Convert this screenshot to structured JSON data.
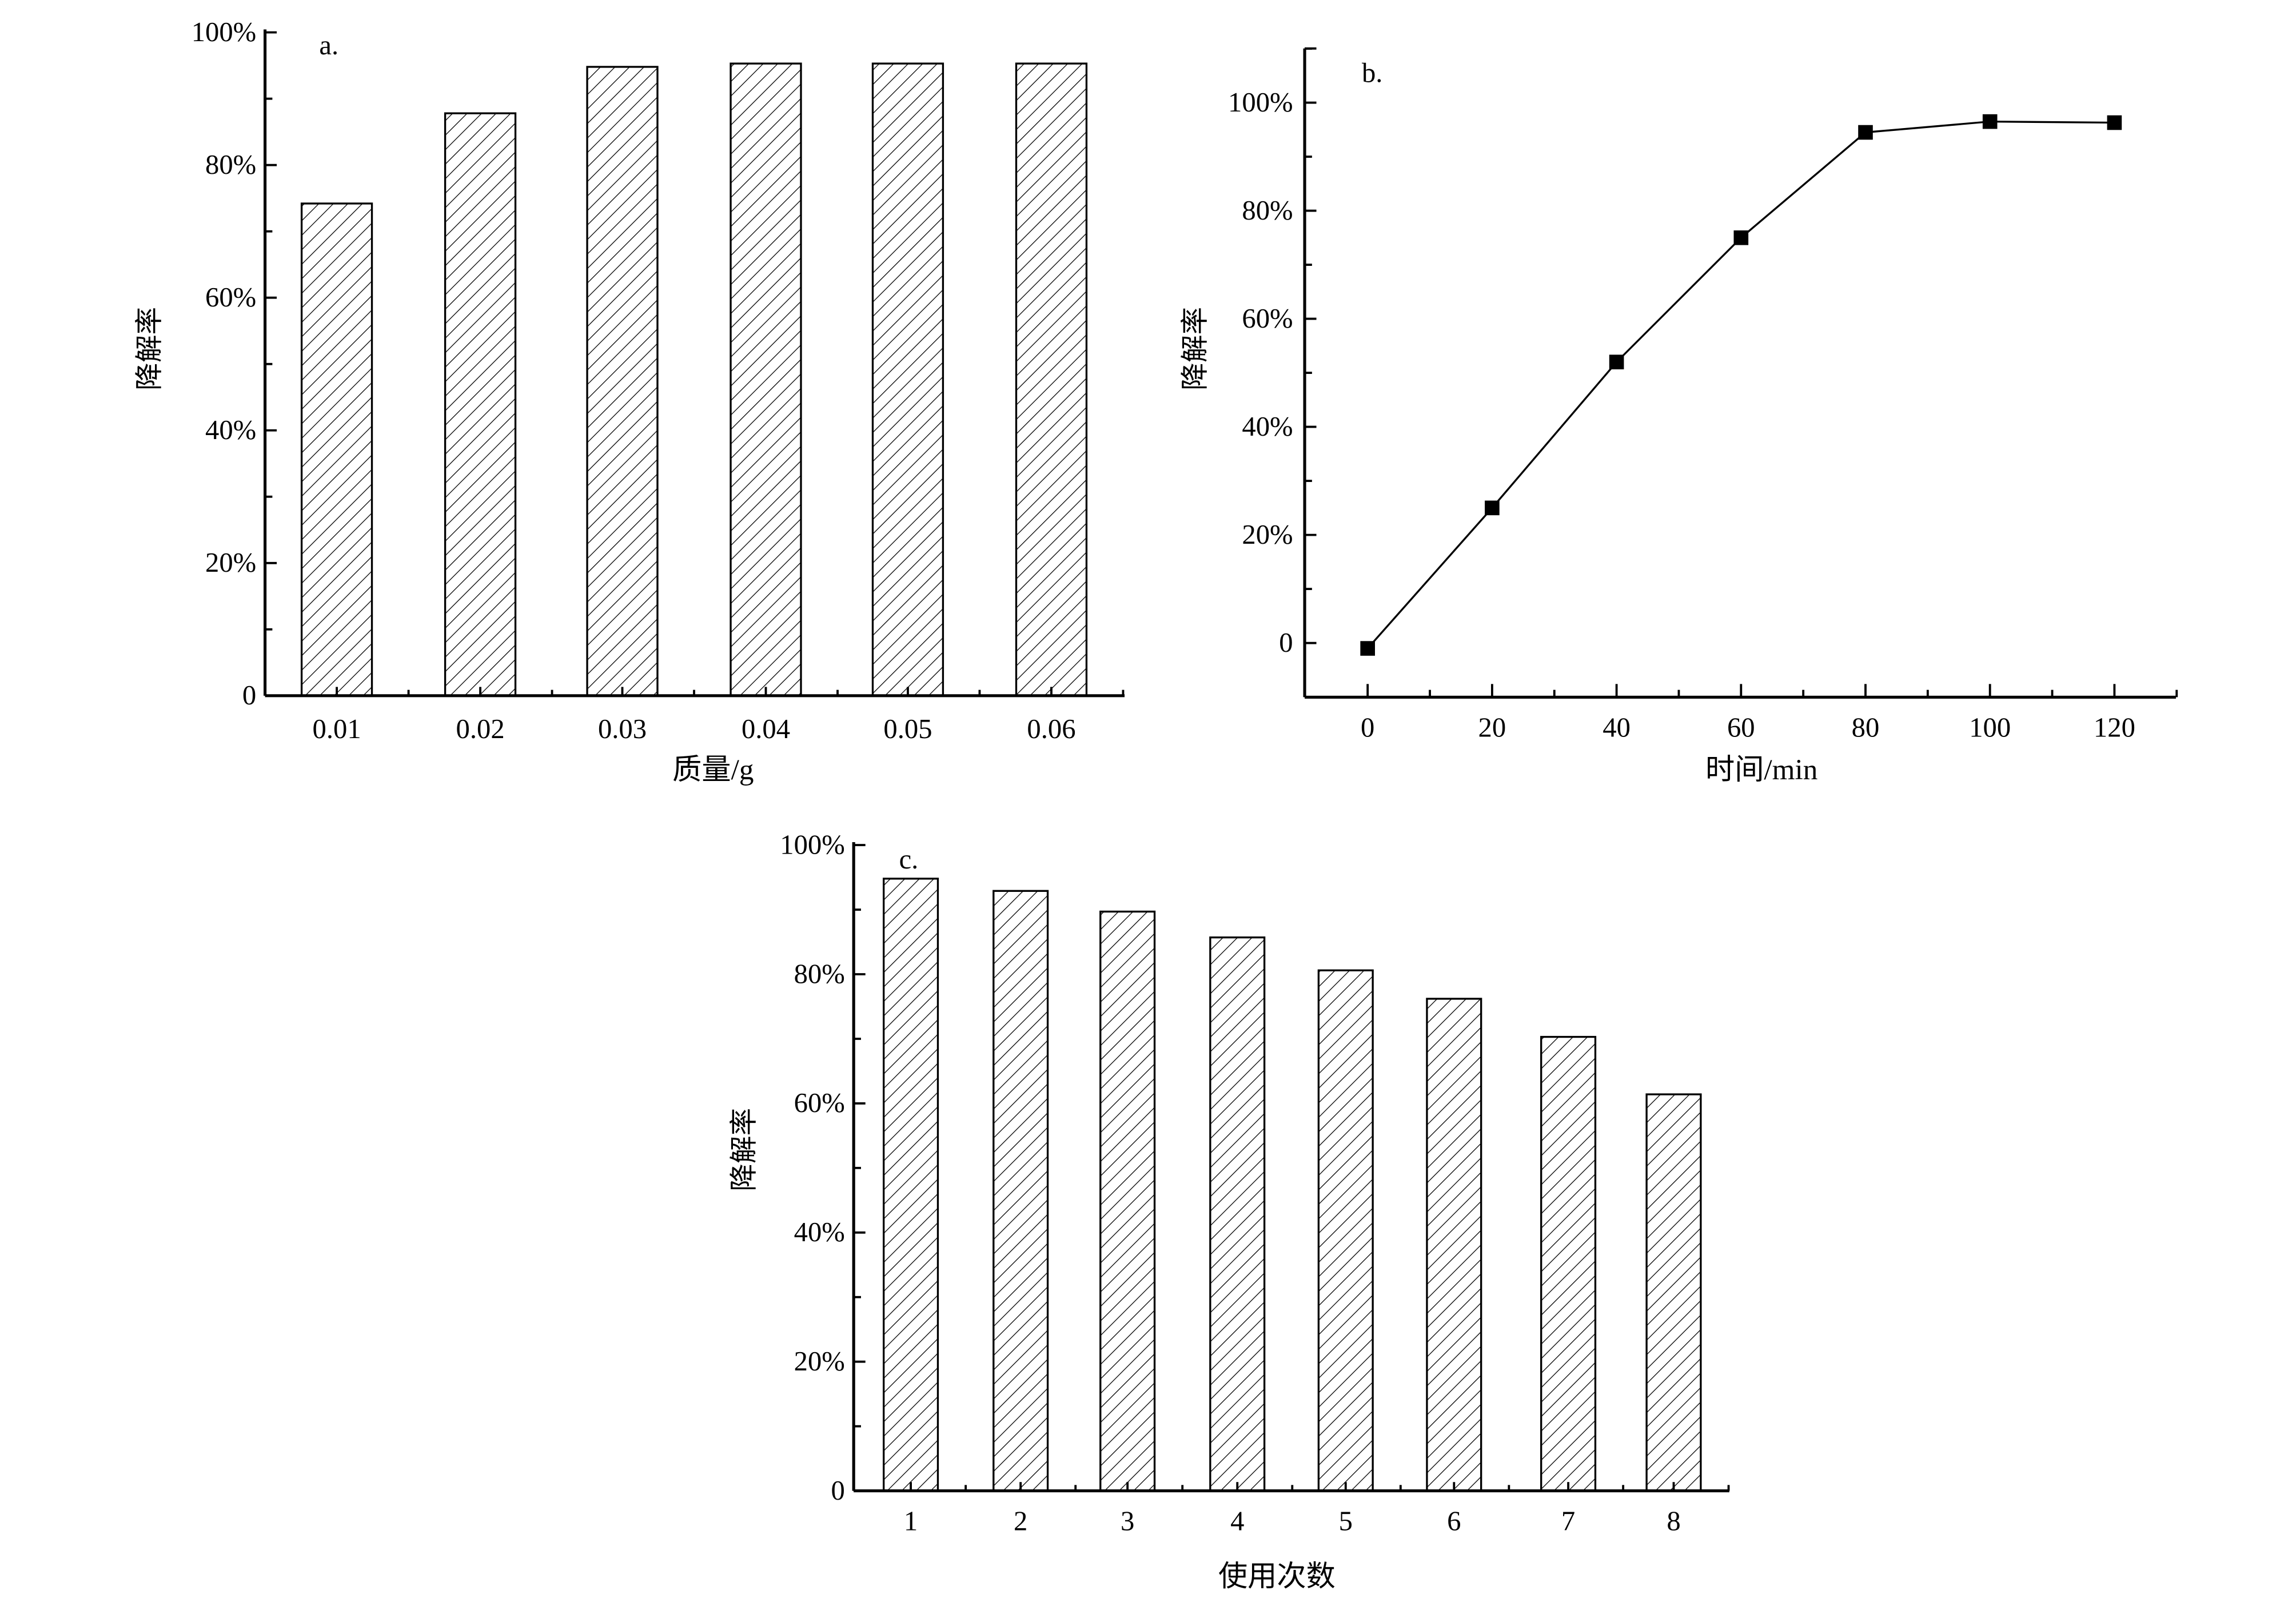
{
  "chart_data": [
    {
      "type": "bar",
      "panel_label": "a.",
      "xlabel": "质量/g",
      "ylabel": "降解率",
      "categories": [
        "0.01",
        "0.02",
        "0.03",
        "0.04",
        "0.05",
        "0.06"
      ],
      "values": [
        74.2,
        87.8,
        94.8,
        95.3,
        95.3,
        95.3
      ],
      "ylim": [
        0,
        100
      ],
      "yticks": [
        "0",
        "20%",
        "40%",
        "60%",
        "80%",
        "100%"
      ],
      "fill": "diagonal-hatch",
      "grid": false
    },
    {
      "type": "line",
      "panel_label": "b.",
      "xlabel": "时间/min",
      "ylabel": "降解率",
      "x": [
        0,
        20,
        40,
        60,
        80,
        100,
        120
      ],
      "y": [
        -1,
        25,
        52,
        75,
        94.5,
        96.5,
        96.3
      ],
      "xlim": [
        -10,
        130
      ],
      "ylim": [
        -10,
        110
      ],
      "xticks": [
        "0",
        "20",
        "40",
        "60",
        "80",
        "100",
        "120"
      ],
      "yticks": [
        "0",
        "20%",
        "40%",
        "60%",
        "80%",
        "100%"
      ],
      "marker": "square",
      "grid": false
    },
    {
      "type": "bar",
      "panel_label": "c.",
      "xlabel": "使用次数",
      "ylabel": "降解率",
      "categories": [
        "1",
        "2",
        "3",
        "4",
        "5",
        "6",
        "7",
        "8"
      ],
      "values": [
        94.8,
        92.9,
        89.7,
        85.7,
        80.6,
        76.2,
        70.3,
        61.4
      ],
      "ylim": [
        0,
        100
      ],
      "yticks": [
        "0",
        "20%",
        "40%",
        "60%",
        "80%",
        "100%"
      ],
      "fill": "diagonal-hatch",
      "grid": false
    }
  ]
}
